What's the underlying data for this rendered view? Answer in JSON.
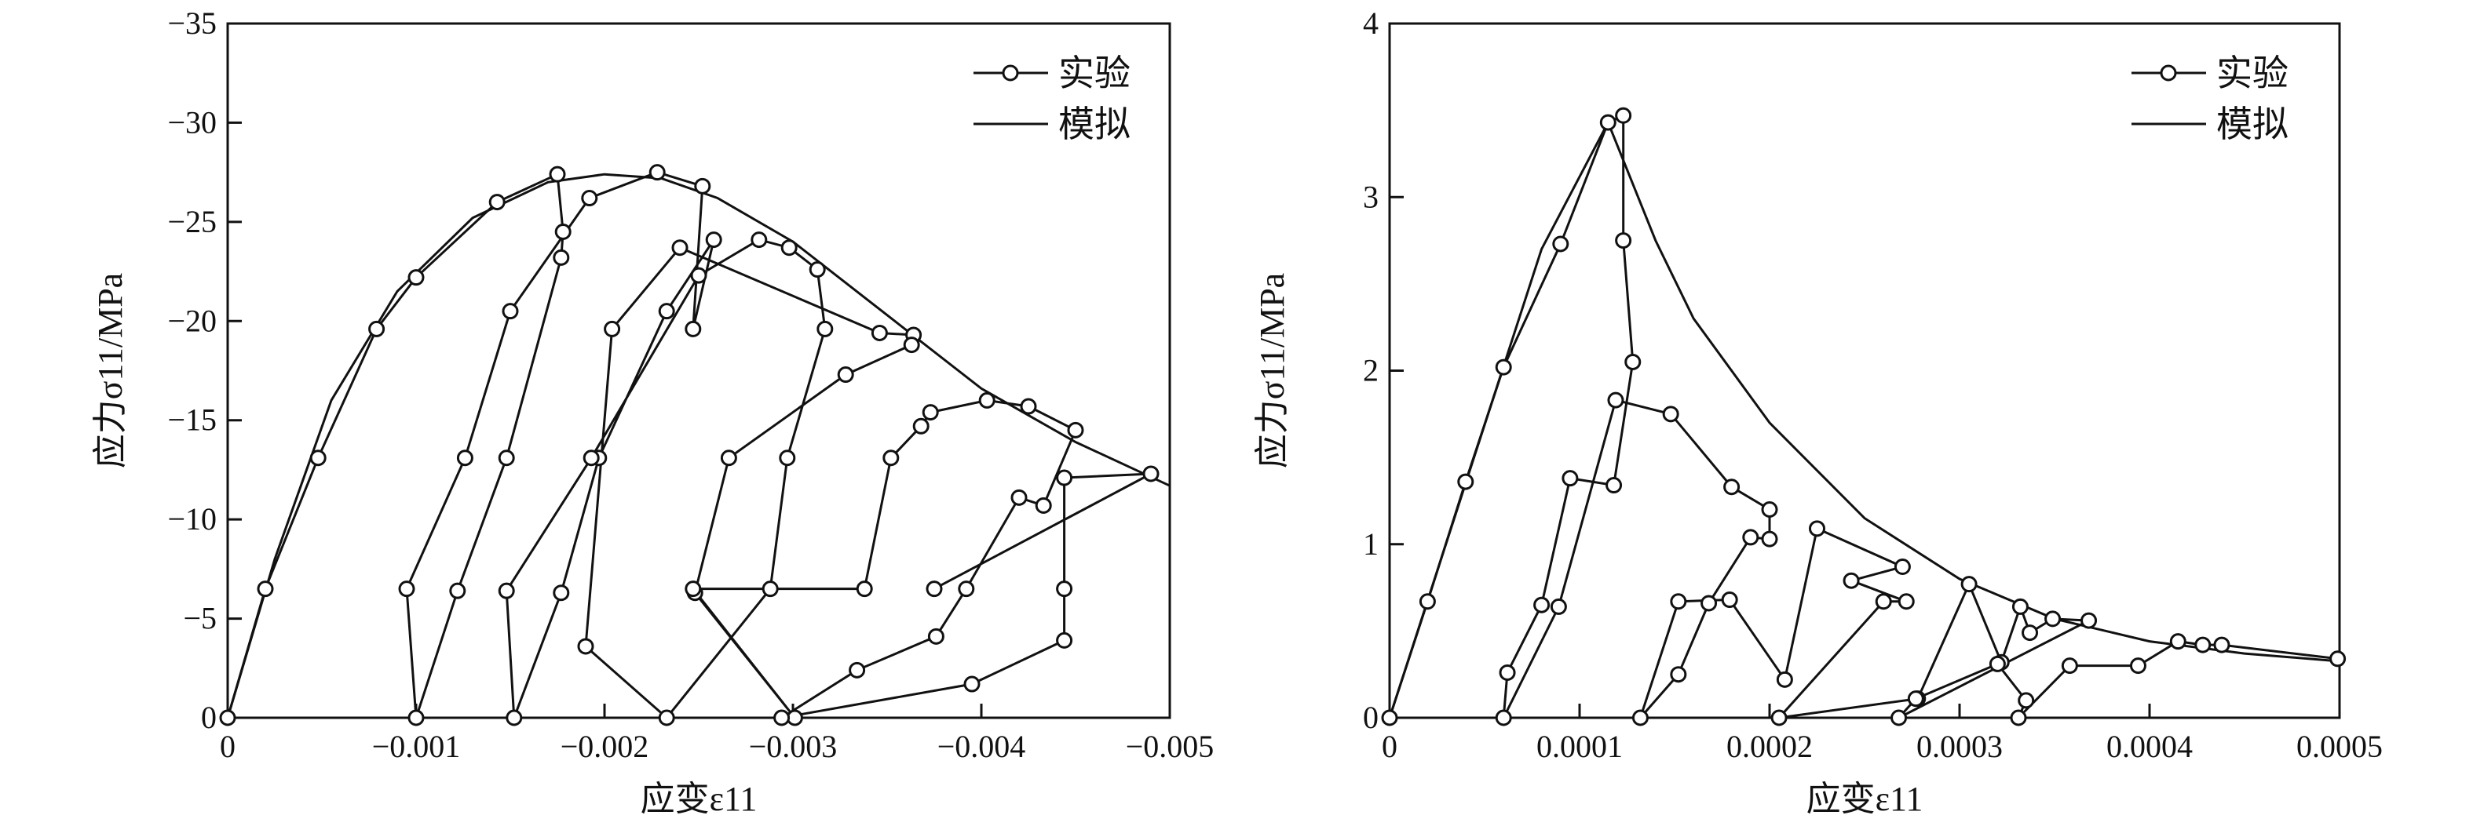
{
  "chart_data": [
    {
      "type": "line",
      "xlabel": "应变ε11",
      "ylabel": "应力σ11/MPa",
      "xlim": [
        0,
        -0.005
      ],
      "ylim": [
        0,
        -35
      ],
      "xticks": [
        "0",
        "−0.001",
        "−0.002",
        "−0.003",
        "−0.004",
        "−0.005"
      ],
      "yticks": [
        "0",
        "−5",
        "−10",
        "−15",
        "−20",
        "−25",
        "−30",
        "−35"
      ],
      "legend": {
        "position": "top-right",
        "entries": [
          "实验",
          "模拟"
        ]
      },
      "series": [
        {
          "name": "实验",
          "points": [
            [
              0,
              0
            ],
            [
              -0.0002,
              -6.5
            ],
            [
              -0.00048,
              -13.1
            ],
            [
              -0.00079,
              -19.6
            ],
            [
              -0.001,
              -22.2
            ],
            [
              -0.00143,
              -26.0
            ],
            [
              -0.00175,
              -27.4
            ],
            [
              -0.00178,
              -24.5
            ],
            [
              -0.00177,
              -23.2
            ],
            [
              -0.00148,
              -13.1
            ],
            [
              -0.00122,
              -6.4
            ],
            [
              -0.001,
              0
            ],
            [
              -0.00095,
              -6.5
            ],
            [
              -0.00126,
              -13.1
            ],
            [
              -0.0015,
              -20.5
            ],
            [
              -0.00192,
              -26.2
            ],
            [
              -0.00228,
              -27.5
            ],
            [
              -0.00252,
              -26.8
            ],
            [
              -0.00247,
              -19.6
            ],
            [
              -0.00258,
              -24.1
            ],
            [
              -0.00233,
              -20.5
            ],
            [
              -0.00197,
              -13.1
            ],
            [
              -0.00177,
              -6.3
            ],
            [
              -0.00152,
              0
            ],
            [
              -0.00148,
              -6.4
            ],
            [
              -0.00193,
              -13.1
            ],
            [
              -0.0025,
              -22.3
            ],
            [
              -0.00282,
              -24.1
            ],
            [
              -0.00298,
              -23.7
            ],
            [
              -0.00313,
              -22.6
            ],
            [
              -0.00317,
              -19.6
            ],
            [
              -0.00297,
              -13.1
            ],
            [
              -0.00288,
              -6.5
            ],
            [
              -0.00233,
              0
            ],
            [
              -0.0019,
              -3.6
            ],
            [
              -0.00204,
              -19.6
            ],
            [
              -0.0024,
              -23.7
            ],
            [
              -0.00346,
              -19.4
            ],
            [
              -0.00364,
              -19.3
            ],
            [
              -0.00363,
              -18.8
            ],
            [
              -0.00328,
              -17.3
            ],
            [
              -0.00266,
              -13.1
            ],
            [
              -0.00248,
              -6.3
            ],
            [
              -0.00301,
              0
            ],
            [
              -0.00247,
              -6.5
            ],
            [
              -0.00338,
              -6.5
            ],
            [
              -0.00352,
              -13.1
            ],
            [
              -0.00368,
              -14.7
            ],
            [
              -0.00373,
              -15.4
            ],
            [
              -0.00403,
              -16.0
            ],
            [
              -0.00425,
              -15.7
            ],
            [
              -0.0045,
              -14.5
            ],
            [
              -0.00433,
              -10.7
            ],
            [
              -0.0042,
              -11.1
            ],
            [
              -0.00392,
              -6.5
            ],
            [
              -0.00376,
              -4.1
            ],
            [
              -0.00334,
              -2.4
            ],
            [
              -0.00294,
              0
            ],
            [
              -0.00395,
              -1.7
            ],
            [
              -0.00444,
              -3.9
            ],
            [
              -0.00444,
              -6.5
            ],
            [
              -0.00444,
              -12.1
            ],
            [
              -0.0049,
              -12.3
            ],
            [
              -0.00375,
              -6.5
            ]
          ]
        },
        {
          "name": "模拟",
          "points": [
            [
              0,
              0
            ],
            [
              -0.00025,
              -8
            ],
            [
              -0.00055,
              -16
            ],
            [
              -0.0009,
              -21.5
            ],
            [
              -0.0013,
              -25.2
            ],
            [
              -0.0017,
              -27.0
            ],
            [
              -0.002,
              -27.4
            ],
            [
              -0.0023,
              -27.2
            ],
            [
              -0.0026,
              -26.2
            ],
            [
              -0.003,
              -24.0
            ],
            [
              -0.0035,
              -20.3
            ],
            [
              -0.004,
              -16.6
            ],
            [
              -0.0045,
              -13.9
            ],
            [
              -0.005,
              -11.7
            ]
          ]
        }
      ]
    },
    {
      "type": "line",
      "xlabel": "应变ε11",
      "ylabel": "应力σ11/MPa",
      "xlim": [
        0,
        0.0005
      ],
      "ylim": [
        0,
        4
      ],
      "xticks": [
        "0",
        "0.0001",
        "0.0002",
        "0.0003",
        "0.0004",
        "0.0005"
      ],
      "yticks": [
        "0",
        "1",
        "2",
        "3",
        "4"
      ],
      "legend": {
        "position": "top-right",
        "entries": [
          "实验",
          "模拟"
        ]
      },
      "series": [
        {
          "name": "实验",
          "points": [
            [
              0,
              0
            ],
            [
              2e-05,
              0.67
            ],
            [
              4e-05,
              1.36
            ],
            [
              6e-05,
              2.02
            ],
            [
              9e-05,
              2.73
            ],
            [
              0.000115,
              3.43
            ],
            [
              0.000123,
              3.47
            ],
            [
              0.000123,
              2.75
            ],
            [
              0.000128,
              2.05
            ],
            [
              0.000118,
              1.34
            ],
            [
              9.5e-05,
              1.38
            ],
            [
              8e-05,
              0.65
            ],
            [
              6.2e-05,
              0.26
            ],
            [
              6e-05,
              0
            ],
            [
              8.9e-05,
              0.64
            ],
            [
              0.000119,
              1.83
            ],
            [
              0.000148,
              1.75
            ],
            [
              0.00018,
              1.33
            ],
            [
              0.0002,
              1.2
            ],
            [
              0.0002,
              1.03
            ],
            [
              0.00019,
              1.04
            ],
            [
              0.000168,
              0.66
            ],
            [
              0.000152,
              0.25
            ],
            [
              0.000132,
              0
            ],
            [
              0.000152,
              0.67
            ],
            [
              0.000179,
              0.68
            ],
            [
              0.000208,
              0.22
            ],
            [
              0.000225,
              1.09
            ],
            [
              0.00027,
              0.87
            ],
            [
              0.000243,
              0.79
            ],
            [
              0.000272,
              0.67
            ],
            [
              0.00026,
              0.67
            ],
            [
              0.000205,
              0
            ],
            [
              0.000278,
              0.11
            ],
            [
              0.000305,
              0.77
            ],
            [
              0.000322,
              0.32
            ],
            [
              0.000332,
              0.64
            ],
            [
              0.000337,
              0.49
            ],
            [
              0.000349,
              0.57
            ],
            [
              0.000368,
              0.56
            ],
            [
              0.000268,
              0
            ],
            [
              0.000277,
              0.11
            ],
            [
              0.00032,
              0.31
            ],
            [
              0.000335,
              0.1
            ],
            [
              0.000331,
              0
            ],
            [
              0.000358,
              0.3
            ],
            [
              0.000394,
              0.3
            ],
            [
              0.000415,
              0.44
            ],
            [
              0.000428,
              0.42
            ],
            [
              0.000438,
              0.42
            ],
            [
              0.000499,
              0.34
            ]
          ]
        },
        {
          "name": "模拟",
          "points": [
            [
              0,
              0
            ],
            [
              4e-05,
              1.35
            ],
            [
              8e-05,
              2.7
            ],
            [
              0.000115,
              3.43
            ],
            [
              0.00014,
              2.75
            ],
            [
              0.00016,
              2.3
            ],
            [
              0.0002,
              1.7
            ],
            [
              0.00025,
              1.15
            ],
            [
              0.0003,
              0.8
            ],
            [
              0.00035,
              0.57
            ],
            [
              0.0004,
              0.44
            ],
            [
              0.00045,
              0.37
            ],
            [
              0.000495,
              0.33
            ]
          ]
        }
      ]
    }
  ]
}
